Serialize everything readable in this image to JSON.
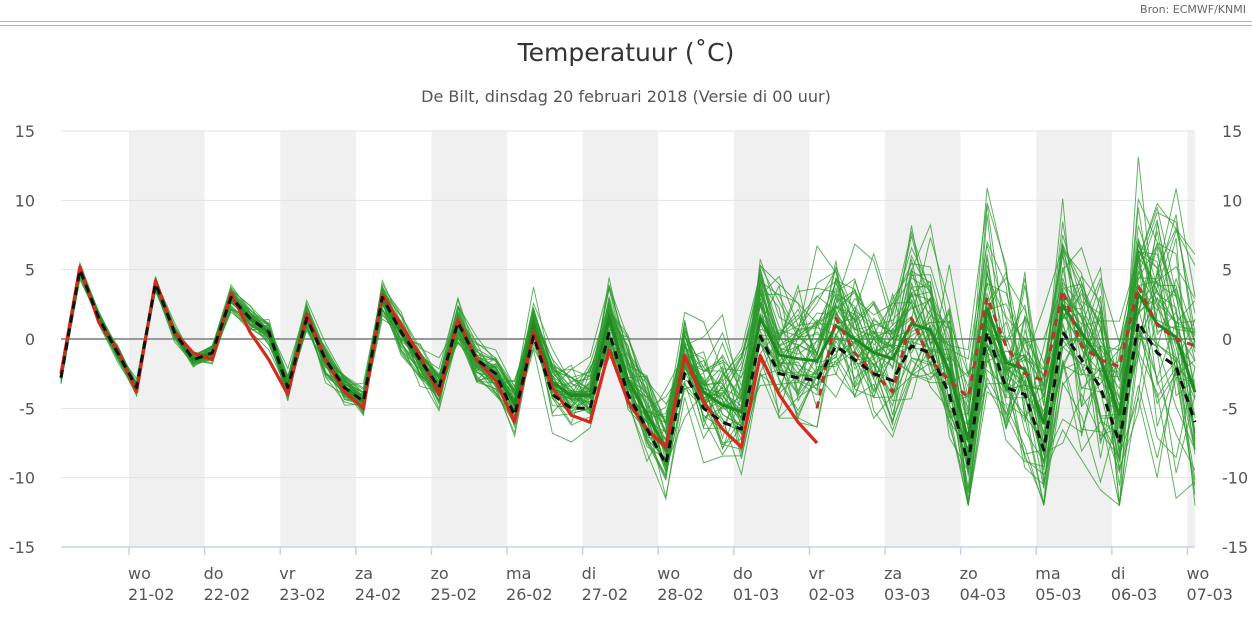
{
  "header": {
    "source": "Bron: ECMWF/KNMI"
  },
  "chart_data": {
    "type": "line",
    "title": "Temperatuur (˚C)",
    "subtitle": "De Bilt, dinsdag 20 februari 2018 (Versie di 00 uur)",
    "ylim": [
      -15,
      15
    ],
    "y_ticks": [
      15,
      10,
      5,
      0,
      -5,
      -10,
      -15
    ],
    "x_unit": "days after 20-02-2018 00 uur",
    "xlim": [
      0.1,
      15.1
    ],
    "grid": true,
    "x_labels": [
      {
        "day": "wo",
        "date": "21-02"
      },
      {
        "day": "do",
        "date": "22-02"
      },
      {
        "day": "vr",
        "date": "23-02"
      },
      {
        "day": "za",
        "date": "24-02"
      },
      {
        "day": "zo",
        "date": "25-02"
      },
      {
        "day": "ma",
        "date": "26-02"
      },
      {
        "day": "di",
        "date": "27-02"
      },
      {
        "day": "wo",
        "date": "28-02"
      },
      {
        "day": "do",
        "date": "01-03"
      },
      {
        "day": "vr",
        "date": "02-03"
      },
      {
        "day": "za",
        "date": "03-03"
      },
      {
        "day": "zo",
        "date": "04-03"
      },
      {
        "day": "ma",
        "date": "05-03"
      },
      {
        "day": "di",
        "date": "06-03"
      },
      {
        "day": "wo",
        "date": "07-03"
      }
    ],
    "colors": {
      "ensemble": "#2e9a2e",
      "operational": "#d42b1e",
      "control": "#111111",
      "zero_line": "#999999",
      "band": "#f0f0f0",
      "grid": "#e3e3e3",
      "axis": "#c8d2e6"
    },
    "ensemble_members": 50,
    "series": [
      {
        "style": "operational",
        "x": [
          0.1,
          0.35,
          0.6,
          0.85,
          1.1,
          1.35,
          1.6,
          1.85,
          2.1,
          2.35,
          2.6,
          2.85,
          3.1,
          3.35,
          3.6,
          3.85,
          4.1,
          4.35,
          4.6,
          4.85,
          5.1,
          5.35,
          5.6,
          5.85,
          6.1,
          6.35,
          6.6,
          6.85,
          7.1,
          7.35,
          7.6,
          7.85,
          8.1,
          8.35,
          8.6,
          8.85,
          9.1,
          9.35,
          9.6,
          9.85,
          10.1
        ],
        "values": [
          -2.5,
          5.2,
          1.2,
          -0.8,
          -3.8,
          4.2,
          0.5,
          -1,
          -1.5,
          3.3,
          0.5,
          -1.5,
          -4,
          1.8,
          -1.5,
          -3.8,
          -5,
          3.2,
          1,
          -1.2,
          -4,
          1.4,
          -1.5,
          -3,
          -6,
          0.5,
          -3.5,
          -5.5,
          -6,
          -0.8,
          -4.5,
          -6.5,
          -7.8,
          -1.2,
          -4.5,
          -6.5,
          -7.8,
          -1.2,
          -4,
          -6,
          -7.5
        ]
      },
      {
        "style": "operational-dashed",
        "x": [
          10.1,
          10.35,
          10.6,
          10.85,
          11.1,
          11.35,
          11.6,
          11.85,
          12.1,
          12.35,
          12.6,
          12.85,
          13.1,
          13.35,
          13.6,
          13.85,
          14.1,
          14.35,
          14.6,
          14.85,
          15.1
        ],
        "values": [
          -5,
          1.5,
          -1,
          -2.5,
          -3.8,
          1.5,
          -1.5,
          -3,
          -4.2,
          3,
          -0.5,
          -2.5,
          -3,
          3.5,
          -0.5,
          -1.5,
          -2,
          3.8,
          1,
          0,
          -0.5
        ]
      },
      {
        "style": "control",
        "x": [
          0.1,
          0.35,
          0.6,
          0.85,
          1.1,
          1.35,
          1.6,
          1.85,
          2.1,
          2.35,
          2.6,
          2.85,
          3.1,
          3.35,
          3.6,
          3.85,
          4.1,
          4.35,
          4.6,
          4.85,
          5.1,
          5.35,
          5.6,
          5.85,
          6.1,
          6.35,
          6.6,
          6.85,
          7.1,
          7.35,
          7.6,
          7.85,
          8.1,
          8.35,
          8.6,
          8.85,
          9.1,
          9.35,
          9.6,
          9.85,
          10.1,
          10.35,
          10.6,
          10.85,
          11.1,
          11.35,
          11.6,
          11.85,
          12.1,
          12.35,
          12.6,
          12.85,
          13.1,
          13.35,
          13.6,
          13.85,
          14.1,
          14.35,
          14.6,
          14.85,
          15.1
        ],
        "values": [
          -2.8,
          5.0,
          1.5,
          -1,
          -3.5,
          4.0,
          0.5,
          -1.5,
          -1,
          3.0,
          1.5,
          0.5,
          -3.5,
          1.5,
          -1.5,
          -3.5,
          -4.5,
          3.0,
          0.5,
          -1.5,
          -3.5,
          1.2,
          -1.5,
          -2.5,
          -5.5,
          0.2,
          -4,
          -5,
          -5,
          0.5,
          -4,
          -6.5,
          -9,
          -2.5,
          -5,
          -6,
          -6.5,
          0.2,
          -2.5,
          -2.8,
          -3.0,
          -0.5,
          -1.5,
          -2.5,
          -3,
          -0.5,
          -1,
          -4,
          -9,
          0.5,
          -3.5,
          -4,
          -8,
          0.5,
          -1.5,
          -3.5,
          -7.5,
          1.2,
          -1,
          -2,
          -6
        ]
      }
    ]
  }
}
